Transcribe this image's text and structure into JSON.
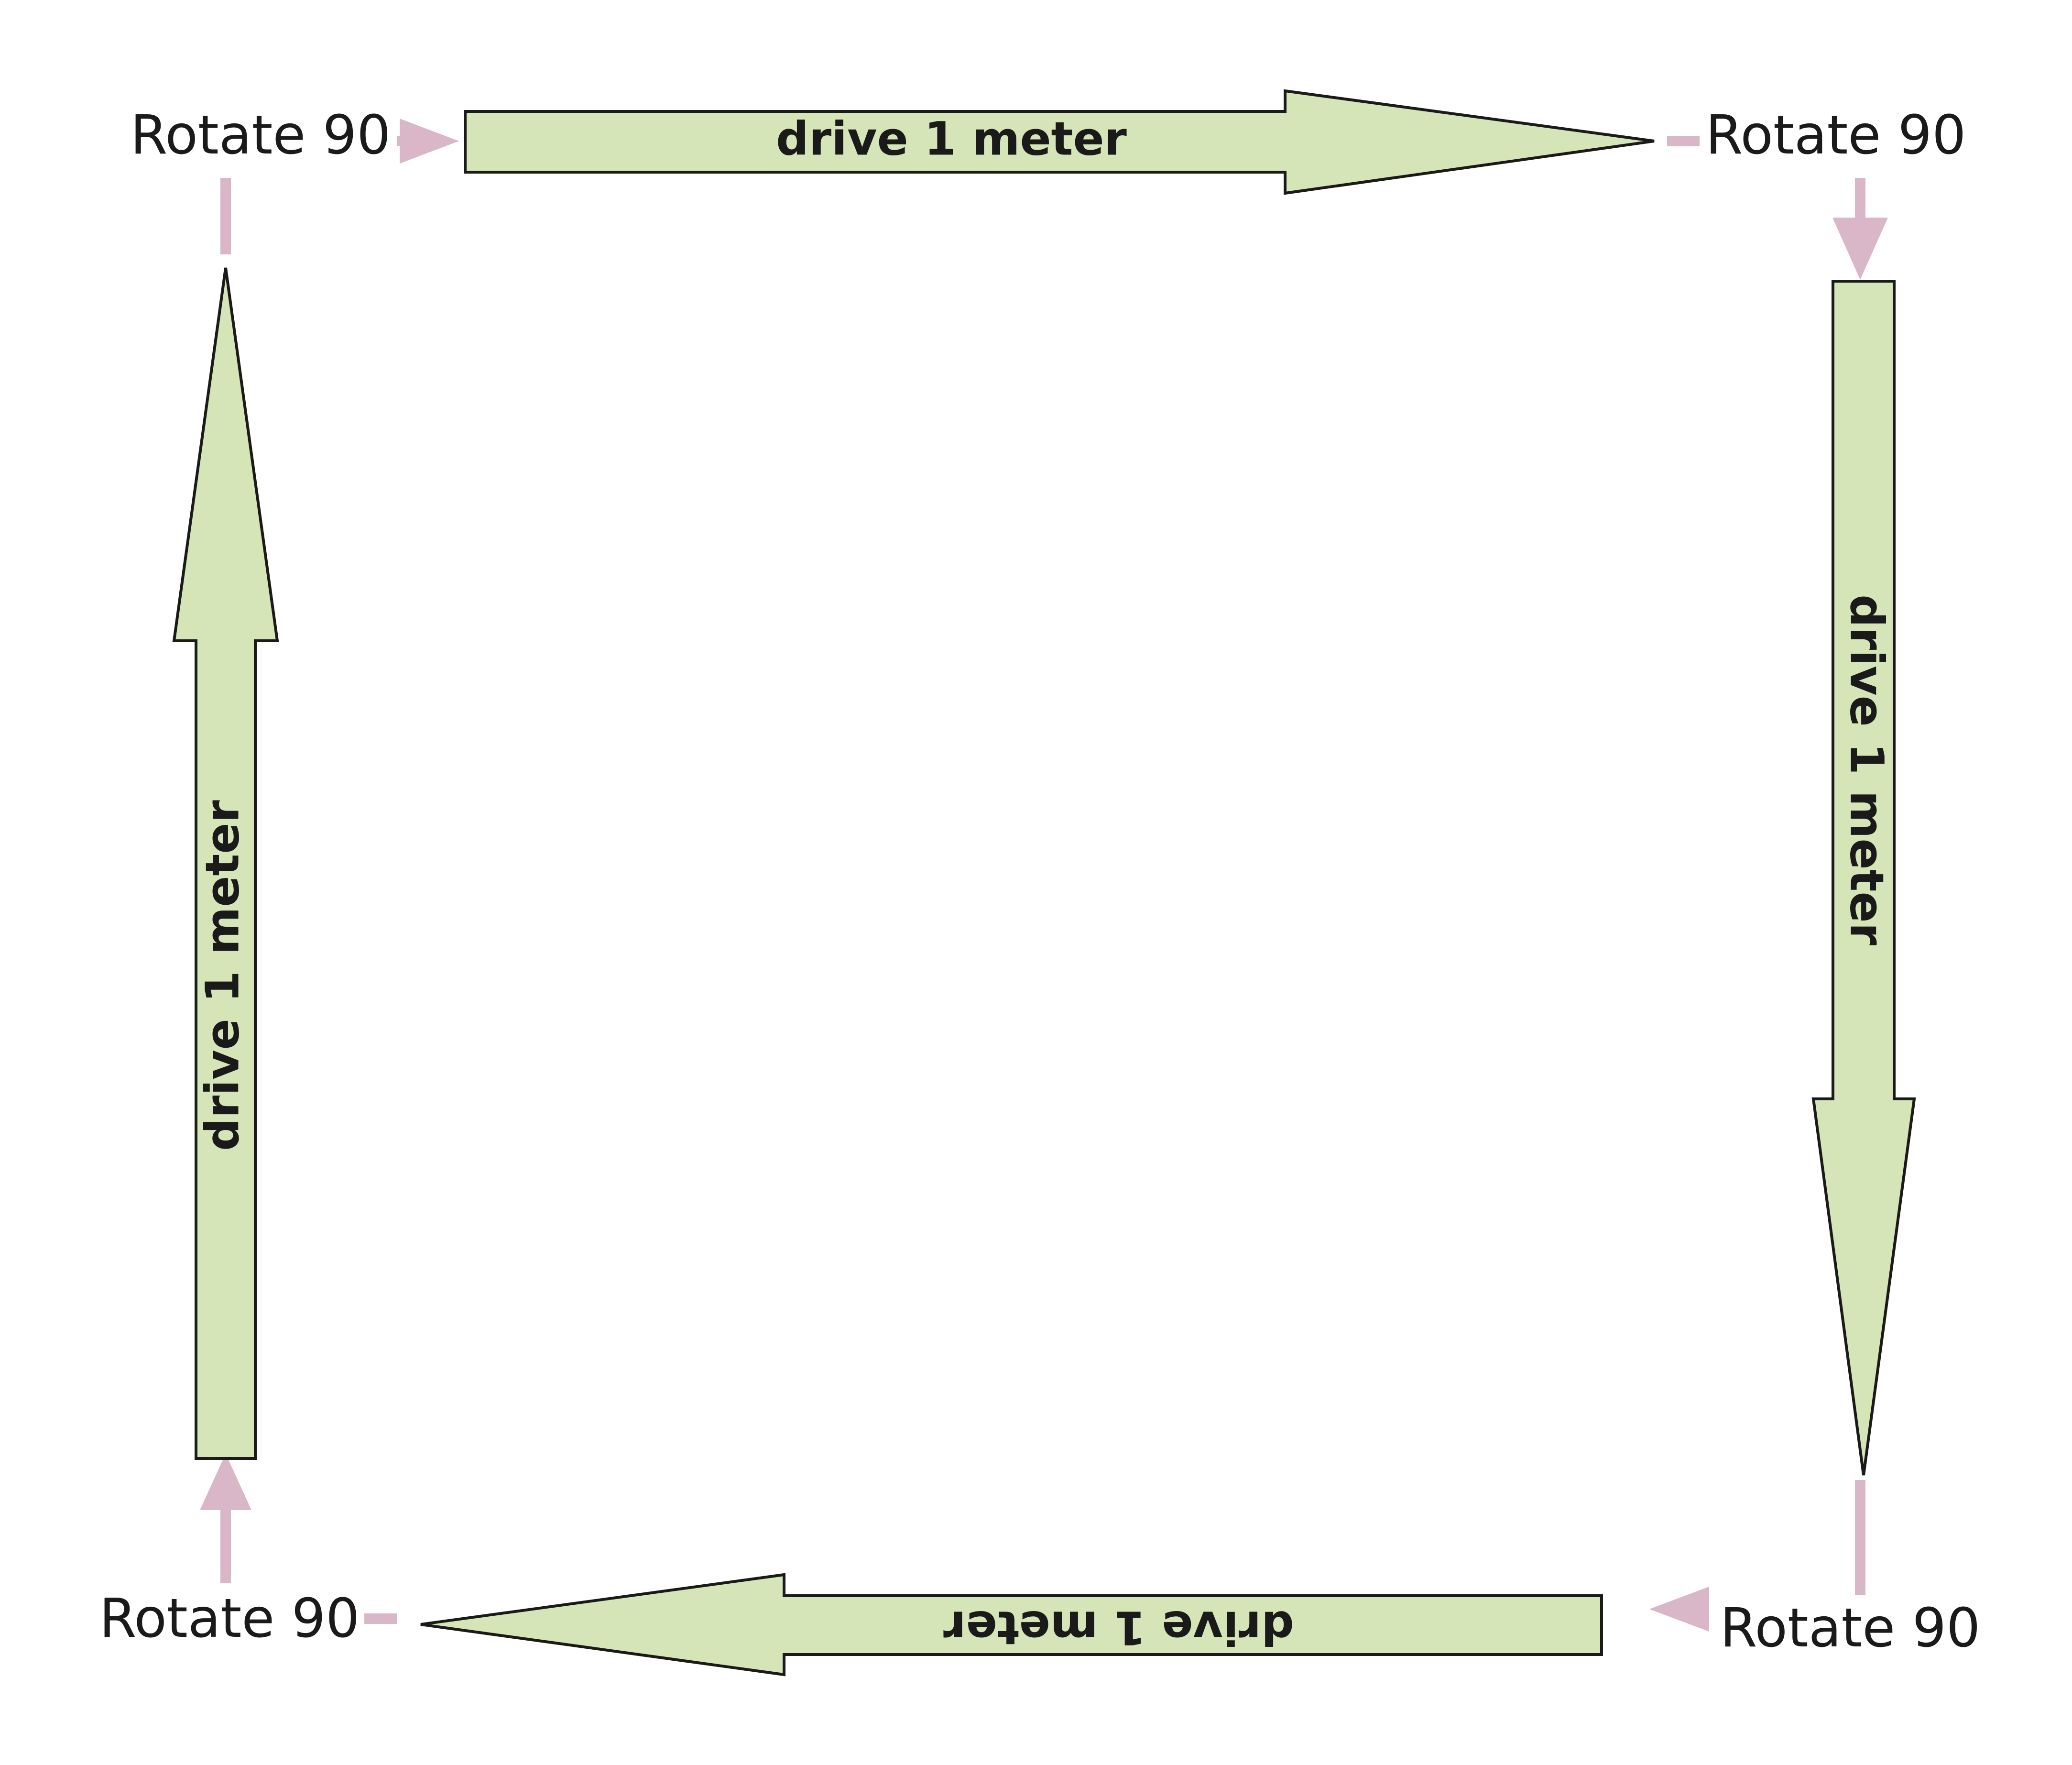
{
  "colors": {
    "arrow_fill": "#d5e5b8",
    "arrow_stroke": "#1a1a1a",
    "connector": "#d9b7c9",
    "text": "#1a1a1a"
  },
  "corners": {
    "top_left": "Rotate 90",
    "top_right": "Rotate 90",
    "bottom_right": "Rotate 90",
    "bottom_left": "Rotate 90"
  },
  "steps": {
    "top": "drive 1 meter",
    "right": "drive 1 meter",
    "bottom": "drive 1 meter",
    "left": "drive 1 meter"
  }
}
